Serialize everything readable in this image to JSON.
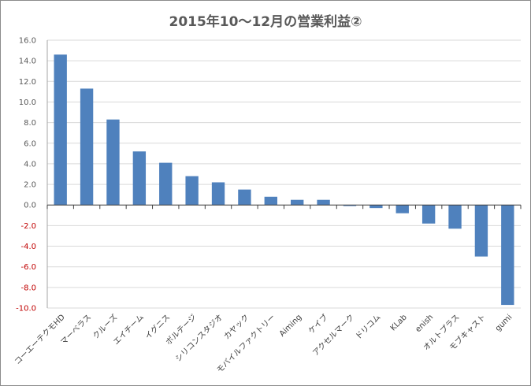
{
  "chart_data": {
    "type": "bar",
    "title": "2015年10〜12月の営業利益②",
    "categories": [
      "コーエーテクモHD",
      "マーベラス",
      "クルーズ",
      "エイチーム",
      "イグニス",
      "ボルテージ",
      "シリコンスタジオ",
      "カヤック",
      "モバイルファクトリー",
      "Aiming",
      "ケイブ",
      "アクセルマーク",
      "ドリコム",
      "KLab",
      "enish",
      "オルトプラス",
      "モブキャスト",
      "gumi"
    ],
    "values": [
      14.6,
      11.3,
      8.3,
      5.2,
      4.1,
      2.8,
      2.2,
      1.5,
      0.8,
      0.5,
      0.5,
      -0.1,
      -0.3,
      -0.8,
      -1.8,
      -2.3,
      -5.0,
      -9.7
    ],
    "ylim": [
      -10,
      16
    ],
    "ytick_step": 2,
    "ytick_labels": [
      "16.0",
      "14.0",
      "12.0",
      "10.0",
      "8.0",
      "6.0",
      "4.0",
      "2.0",
      "0.0",
      "-2.0",
      "-4.0",
      "-6.0",
      "-8.0",
      "-10.0"
    ],
    "xlabel": "",
    "ylabel": "",
    "grid": true,
    "legend": "none",
    "bar_color": "#4f81bd",
    "negative_tick_color": "#c00000"
  }
}
